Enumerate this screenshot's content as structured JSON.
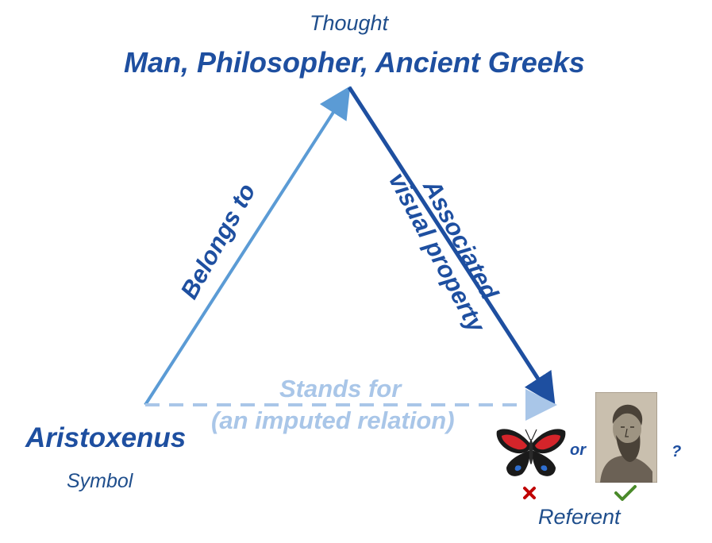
{
  "thought": {
    "caption": "Thought",
    "title": "Man, Philosopher, Ancient Greeks"
  },
  "symbol": {
    "word": "Aristoxenus",
    "caption": "Symbol"
  },
  "referent": {
    "caption": "Referent",
    "or_label": "or",
    "question_mark": "?",
    "options": [
      {
        "name": "butterfly",
        "mark": "wrong"
      },
      {
        "name": "philosopher-portrait",
        "mark": "correct"
      }
    ]
  },
  "edges": {
    "symbol_to_thought": "Belongs to",
    "thought_to_referent_line1": "Associated",
    "thought_to_referent_line2": "visual property",
    "symbol_to_referent_line1": "Stands for",
    "symbol_to_referent_line2": "(an imputed relation)"
  },
  "colors": {
    "dark_blue": "#1e4fa0",
    "mid_blue": "#5b9bd5",
    "light_blue": "#a9c6e8",
    "cross_red": "#c00000",
    "check_green": "#4a8a2a"
  }
}
